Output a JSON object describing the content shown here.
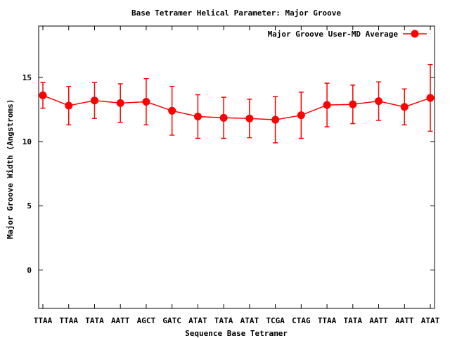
{
  "chart_data": {
    "type": "line",
    "title": "Base Tetramer Helical Parameter: Major Groove",
    "xlabel": "Sequence Base Tetramer",
    "ylabel": "Major Groove Width (Angstroms)",
    "ylim": [
      -3,
      19
    ],
    "yticks": [
      0,
      5,
      10,
      15
    ],
    "grid": false,
    "legend_position": "top-right",
    "categories": [
      "TTAA",
      "TTAA",
      "TATA",
      "AATT",
      "AGCT",
      "GATC",
      "ATAT",
      "TATA",
      "ATAT",
      "TCGA",
      "CTAG",
      "TTAA",
      "TATA",
      "AATT",
      "AATT",
      "ATAT"
    ],
    "series": [
      {
        "name": "Major Groove User-MD Average",
        "color": "#ff0000",
        "values": [
          13.6,
          12.8,
          13.2,
          13.0,
          13.1,
          12.4,
          11.95,
          11.85,
          11.8,
          11.7,
          12.05,
          12.85,
          12.9,
          13.15,
          12.7,
          13.4
        ],
        "errors": [
          1.0,
          1.5,
          1.4,
          1.5,
          1.8,
          1.9,
          1.7,
          1.6,
          1.5,
          1.8,
          1.8,
          1.7,
          1.5,
          1.5,
          1.4,
          2.6
        ]
      }
    ]
  }
}
